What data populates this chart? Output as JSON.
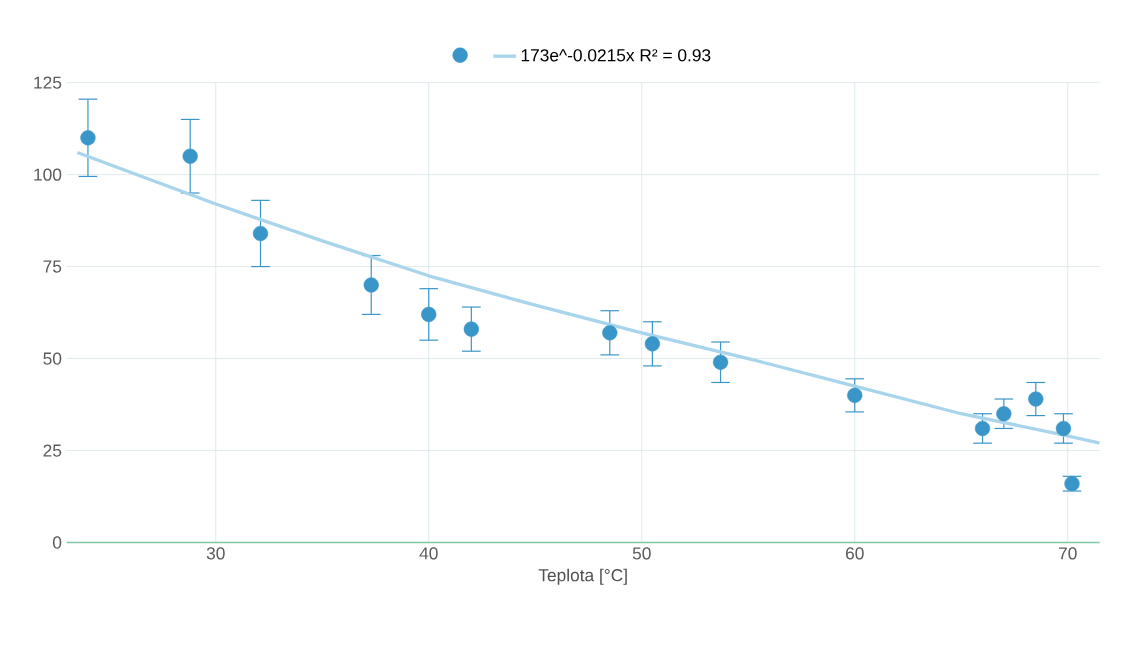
{
  "chart_data": {
    "type": "scatter",
    "xlabel": "Teplota [°C]",
    "xlim": [
      23,
      71.5
    ],
    "ylim": [
      0,
      125
    ],
    "xticks": [
      30,
      40,
      50,
      60,
      70
    ],
    "yticks": [
      0,
      25,
      50,
      75,
      100,
      125
    ],
    "grid": true,
    "legend": "top",
    "series": [
      {
        "color": "#3a96c8",
        "marker": "circle",
        "x": [
          24,
          28.8,
          32.1,
          37.3,
          40,
          42,
          48.5,
          50.5,
          53.7,
          60,
          66,
          67,
          68.5,
          69.8,
          70.2
        ],
        "values": [
          110,
          105,
          84,
          70,
          62,
          58,
          57,
          54,
          49,
          40,
          31,
          35,
          39,
          31,
          16
        ],
        "errors": [
          10.5,
          10,
          9,
          8,
          7,
          6,
          6,
          6,
          5.5,
          4.5,
          4,
          4,
          4.5,
          4,
          2
        ]
      },
      {
        "type": "line",
        "name": "173e^-0.0215x R² = 0.93",
        "color": "#a8d4ec",
        "marker": "none",
        "line_style": "solid",
        "x": [
          23.5,
          30,
          35,
          40,
          45,
          50,
          55,
          60,
          65,
          70,
          71.5
        ],
        "values": [
          106,
          92,
          82,
          72.5,
          64.5,
          57,
          50,
          42.5,
          35,
          29,
          27
        ]
      }
    ]
  }
}
